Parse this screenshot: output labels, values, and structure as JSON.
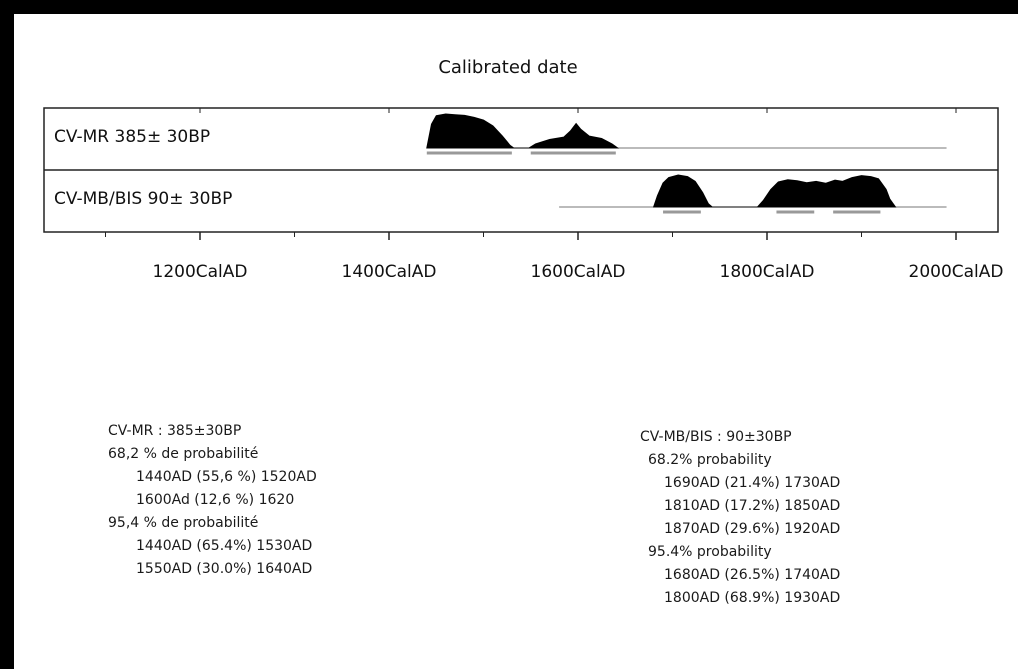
{
  "chart_data": {
    "type": "area",
    "title": "Calibrated date",
    "x_ticks": [
      1200,
      1400,
      1600,
      1800,
      2000
    ],
    "x_tick_labels": [
      "1200CalAD",
      "1400CalAD",
      "1600CalAD",
      "1800CalAD",
      "2000CalAD"
    ],
    "xlim": [
      1100,
      2050
    ],
    "series": [
      {
        "name": "CV-MR 385± 30BP",
        "curve_range": [
          1450,
          1990
        ],
        "density": [
          [
            1440,
            0
          ],
          [
            1445,
            0.7
          ],
          [
            1450,
            0.95
          ],
          [
            1460,
            1.0
          ],
          [
            1470,
            0.98
          ],
          [
            1480,
            0.96
          ],
          [
            1490,
            0.9
          ],
          [
            1500,
            0.82
          ],
          [
            1510,
            0.65
          ],
          [
            1520,
            0.35
          ],
          [
            1528,
            0.08
          ],
          [
            1532,
            0
          ],
          [
            1548,
            0
          ],
          [
            1555,
            0.12
          ],
          [
            1570,
            0.25
          ],
          [
            1585,
            0.32
          ],
          [
            1592,
            0.5
          ],
          [
            1598,
            0.72
          ],
          [
            1603,
            0.55
          ],
          [
            1612,
            0.35
          ],
          [
            1625,
            0.28
          ],
          [
            1636,
            0.12
          ],
          [
            1642,
            0
          ]
        ],
        "range_bars": [
          [
            1440,
            1530
          ],
          [
            1550,
            1640
          ]
        ]
      },
      {
        "name": "CV-MB/BIS 90± 30BP",
        "curve_range": [
          1580,
          1990
        ],
        "density": [
          [
            1680,
            0
          ],
          [
            1684,
            0.35
          ],
          [
            1690,
            0.75
          ],
          [
            1696,
            0.92
          ],
          [
            1706,
            1.0
          ],
          [
            1716,
            0.95
          ],
          [
            1724,
            0.8
          ],
          [
            1732,
            0.45
          ],
          [
            1738,
            0.1
          ],
          [
            1742,
            0
          ],
          [
            1790,
            0
          ],
          [
            1796,
            0.2
          ],
          [
            1804,
            0.55
          ],
          [
            1812,
            0.78
          ],
          [
            1822,
            0.85
          ],
          [
            1832,
            0.82
          ],
          [
            1842,
            0.76
          ],
          [
            1852,
            0.8
          ],
          [
            1862,
            0.74
          ],
          [
            1872,
            0.84
          ],
          [
            1880,
            0.8
          ],
          [
            1890,
            0.92
          ],
          [
            1900,
            0.98
          ],
          [
            1910,
            0.95
          ],
          [
            1918,
            0.88
          ],
          [
            1926,
            0.55
          ],
          [
            1930,
            0.25
          ],
          [
            1936,
            0
          ]
        ],
        "range_bars": [
          [
            1690,
            1730
          ],
          [
            1810,
            1850
          ],
          [
            1870,
            1920
          ]
        ]
      }
    ]
  },
  "legend_left": {
    "title": "CV-MR : 385±30BP",
    "lines": [
      "68,2 % de probabilité",
      "1440AD (55,6 %) 1520AD",
      "1600Ad (12,6 %) 1620",
      "95,4 % de probabilité",
      "1440AD (65.4%) 1530AD",
      "1550AD (30.0%) 1640AD"
    ]
  },
  "legend_right": {
    "title": "CV-MB/BIS : 90±30BP",
    "lines": [
      "68.2% probability",
      "1690AD (21.4%) 1730AD",
      "1810AD (17.2%) 1850AD",
      "1870AD (29.6%) 1920AD",
      "95.4% probability",
      "1680AD (26.5%) 1740AD",
      "1800AD (68.9%) 1930AD"
    ]
  }
}
